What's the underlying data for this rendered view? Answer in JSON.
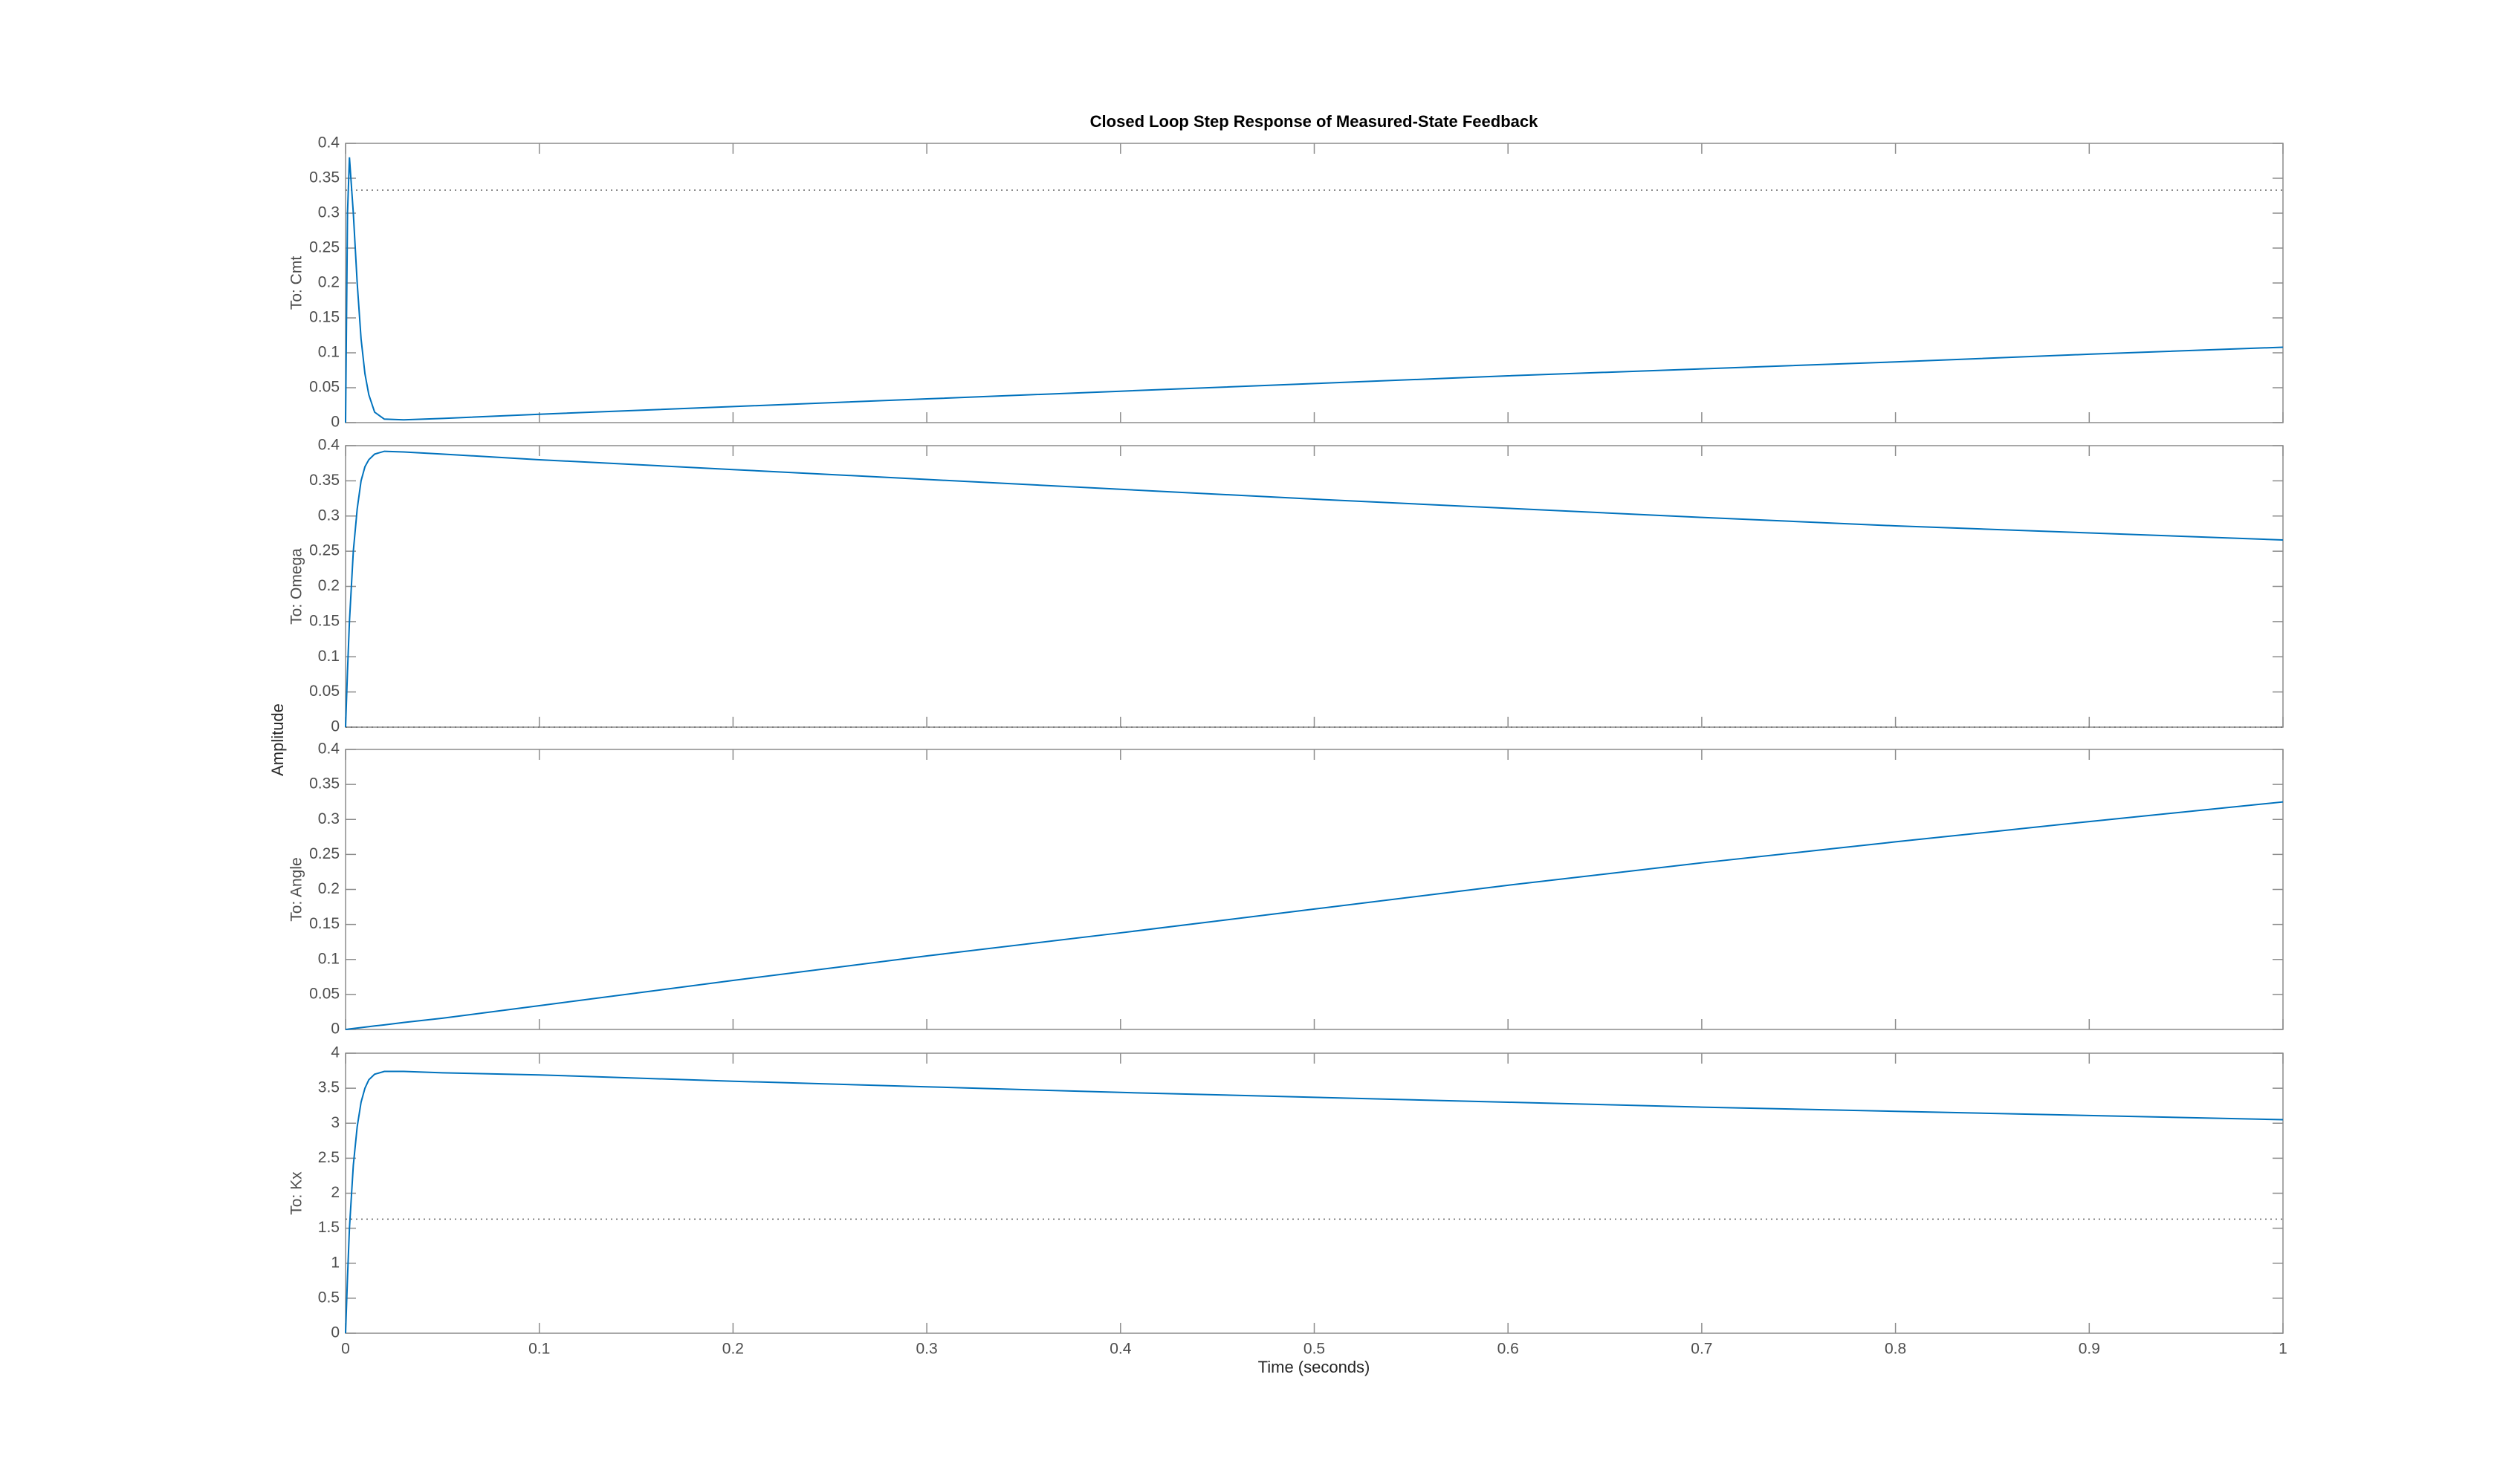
{
  "title": "Closed Loop Step Response of Measured-State Feedback",
  "xlabel": "Time (seconds)",
  "ylabel": "Amplitude",
  "chart_data": [
    {
      "type": "line",
      "ylabel": "To: Cmt",
      "x": [
        0,
        0.001,
        0.002,
        0.004,
        0.006,
        0.008,
        0.01,
        0.012,
        0.015,
        0.02,
        0.03,
        0.05,
        0.1,
        0.2,
        0.3,
        0.4,
        0.5,
        0.6,
        0.7,
        0.8,
        0.9,
        1
      ],
      "series": [
        {
          "color": "#0072bd",
          "values": [
            0,
            0.3,
            0.38,
            0.3,
            0.2,
            0.12,
            0.07,
            0.04,
            0.015,
            0.005,
            0.004,
            0.006,
            0.012,
            0.023,
            0.034,
            0.045,
            0.056,
            0.067,
            0.077,
            0.087,
            0.098,
            0.108
          ]
        }
      ],
      "reference": 0.333,
      "xlim": [
        0,
        1
      ],
      "xticks": [
        0,
        0.1,
        0.2,
        0.3,
        0.4,
        0.5,
        0.6,
        0.7,
        0.8,
        0.9,
        1
      ],
      "show_xtick_labels": false,
      "ylim": [
        0,
        0.4
      ],
      "yticks": [
        0,
        0.05,
        0.1,
        0.15,
        0.2,
        0.25,
        0.3,
        0.35,
        0.4
      ]
    },
    {
      "type": "line",
      "ylabel": "To: Omega",
      "x": [
        0,
        0.001,
        0.002,
        0.004,
        0.006,
        0.008,
        0.01,
        0.012,
        0.015,
        0.02,
        0.03,
        0.05,
        0.1,
        0.2,
        0.3,
        0.4,
        0.5,
        0.6,
        0.7,
        0.8,
        0.9,
        1
      ],
      "series": [
        {
          "color": "#0072bd",
          "values": [
            0,
            0.08,
            0.15,
            0.25,
            0.31,
            0.35,
            0.37,
            0.38,
            0.388,
            0.392,
            0.391,
            0.388,
            0.38,
            0.366,
            0.352,
            0.338,
            0.324,
            0.311,
            0.298,
            0.286,
            0.276,
            0.266
          ]
        }
      ],
      "reference": 0,
      "xlim": [
        0,
        1
      ],
      "xticks": [
        0,
        0.1,
        0.2,
        0.3,
        0.4,
        0.5,
        0.6,
        0.7,
        0.8,
        0.9,
        1
      ],
      "show_xtick_labels": false,
      "ylim": [
        0,
        0.4
      ],
      "yticks": [
        0,
        0.05,
        0.1,
        0.15,
        0.2,
        0.25,
        0.3,
        0.35,
        0.4
      ]
    },
    {
      "type": "line",
      "ylabel": "To: Angle",
      "x": [
        0,
        0.001,
        0.002,
        0.004,
        0.006,
        0.008,
        0.01,
        0.012,
        0.015,
        0.02,
        0.03,
        0.05,
        0.1,
        0.2,
        0.3,
        0.4,
        0.5,
        0.6,
        0.7,
        0.8,
        0.9,
        1
      ],
      "series": [
        {
          "color": "#0072bd",
          "values": [
            0,
            0.0003,
            0.0007,
            0.0013,
            0.002,
            0.0026,
            0.0033,
            0.004,
            0.005,
            0.0065,
            0.01,
            0.016,
            0.034,
            0.07,
            0.105,
            0.138,
            0.172,
            0.206,
            0.238,
            0.268,
            0.297,
            0.325
          ]
        }
      ],
      "xlim": [
        0,
        1
      ],
      "xticks": [
        0,
        0.1,
        0.2,
        0.3,
        0.4,
        0.5,
        0.6,
        0.7,
        0.8,
        0.9,
        1
      ],
      "show_xtick_labels": false,
      "ylim": [
        0,
        0.4
      ],
      "yticks": [
        0,
        0.05,
        0.1,
        0.15,
        0.2,
        0.25,
        0.3,
        0.35,
        0.4
      ]
    },
    {
      "type": "line",
      "ylabel": "To: Kx",
      "x": [
        0,
        0.001,
        0.002,
        0.004,
        0.006,
        0.008,
        0.01,
        0.012,
        0.015,
        0.02,
        0.03,
        0.05,
        0.1,
        0.2,
        0.3,
        0.4,
        0.5,
        0.6,
        0.7,
        0.8,
        0.9,
        1
      ],
      "series": [
        {
          "color": "#0072bd",
          "values": [
            0,
            0.8,
            1.5,
            2.4,
            2.95,
            3.3,
            3.5,
            3.62,
            3.7,
            3.74,
            3.74,
            3.72,
            3.69,
            3.6,
            3.52,
            3.44,
            3.37,
            3.3,
            3.23,
            3.17,
            3.11,
            3.05
          ]
        }
      ],
      "reference": 1.63,
      "xlim": [
        0,
        1
      ],
      "xticks": [
        0,
        0.1,
        0.2,
        0.3,
        0.4,
        0.5,
        0.6,
        0.7,
        0.8,
        0.9,
        1
      ],
      "show_xtick_labels": true,
      "ylim": [
        0,
        4
      ],
      "yticks": [
        0,
        0.5,
        1,
        1.5,
        2,
        2.5,
        3,
        3.5,
        4
      ]
    }
  ]
}
